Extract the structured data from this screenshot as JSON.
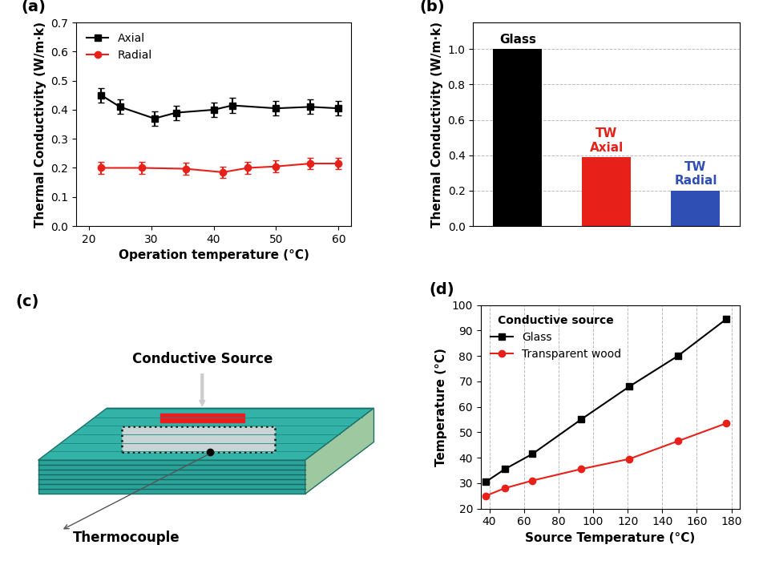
{
  "chart_data": [
    {
      "type": "line",
      "title": "(a)",
      "x_label": "Operation temperature (°C)",
      "y_label": "Thermal Conductivity (W/m·k)",
      "xlim": [
        18,
        62
      ],
      "xticks": [
        20,
        30,
        40,
        50,
        60
      ],
      "ylim": [
        0.0,
        0.7
      ],
      "yticks": [
        0.0,
        0.1,
        0.2,
        0.3,
        0.4,
        0.5,
        0.6,
        0.7
      ],
      "grid": false,
      "legend": "upper left",
      "series": [
        {
          "name": "Axial",
          "color": "#000000",
          "marker": "s",
          "line_style": "solid",
          "x": [
            22,
            25,
            30.5,
            34,
            40,
            43,
            50,
            55.5,
            60
          ],
          "values": [
            0.45,
            0.41,
            0.37,
            0.39,
            0.4,
            0.415,
            0.405,
            0.41,
            0.405
          ],
          "errors": [
            0.025,
            0.025,
            0.025,
            0.025,
            0.025,
            0.025,
            0.025,
            0.025,
            0.025
          ]
        },
        {
          "name": "Radial",
          "color": "#e8201a",
          "marker": "o",
          "line_style": "solid",
          "x": [
            22,
            28.5,
            35.5,
            41.5,
            45.5,
            50,
            55.5,
            60
          ],
          "values": [
            0.2,
            0.2,
            0.197,
            0.185,
            0.2,
            0.205,
            0.215,
            0.215
          ],
          "errors": [
            0.02,
            0.02,
            0.02,
            0.02,
            0.02,
            0.02,
            0.02,
            0.02
          ]
        }
      ]
    },
    {
      "type": "bar",
      "title": "(b)",
      "y_label": "Thermal Conductivity (W/m·k)",
      "categories": [
        "Glass",
        "TW\nAxial",
        "TW\nRadial"
      ],
      "values": [
        1.0,
        0.39,
        0.2
      ],
      "colors": [
        "#000000",
        "#e8201a",
        "#2f4fb5"
      ],
      "ylim": [
        0.0,
        1.15
      ],
      "yticks": [
        0.0,
        0.2,
        0.4,
        0.6,
        0.8,
        1.0
      ],
      "grid": "y",
      "tick_labels": "y"
    },
    {
      "type": "diagram",
      "title": "(c)",
      "labels": {
        "source": "Conductive Source",
        "thermocouple": "Thermocouple"
      }
    },
    {
      "type": "line",
      "title": "(d)",
      "x_label": "Source Temperature (°C)",
      "y_label": "Temperature (°C)",
      "xlim": [
        35,
        185
      ],
      "xticks": [
        40,
        60,
        80,
        100,
        120,
        140,
        160,
        180
      ],
      "ylim": [
        20,
        100
      ],
      "yticks": [
        20,
        30,
        40,
        50,
        60,
        70,
        80,
        90,
        100
      ],
      "grid": "x",
      "legend": "upper left",
      "legend_title": "Conductive source",
      "series": [
        {
          "name": "Glass",
          "color": "#000000",
          "marker": "s",
          "line_style": "solid",
          "x": [
            38,
            49,
            65,
            93,
            121,
            149,
            177
          ],
          "values": [
            30.5,
            35.5,
            41.5,
            55,
            68,
            80,
            94.5
          ]
        },
        {
          "name": "Transparent wood",
          "color": "#e8201a",
          "marker": "o",
          "line_style": "solid",
          "x": [
            38,
            49,
            65,
            93,
            121,
            149,
            177
          ],
          "values": [
            25,
            28,
            31,
            35.5,
            39.5,
            46.5,
            53.5
          ]
        }
      ]
    }
  ]
}
